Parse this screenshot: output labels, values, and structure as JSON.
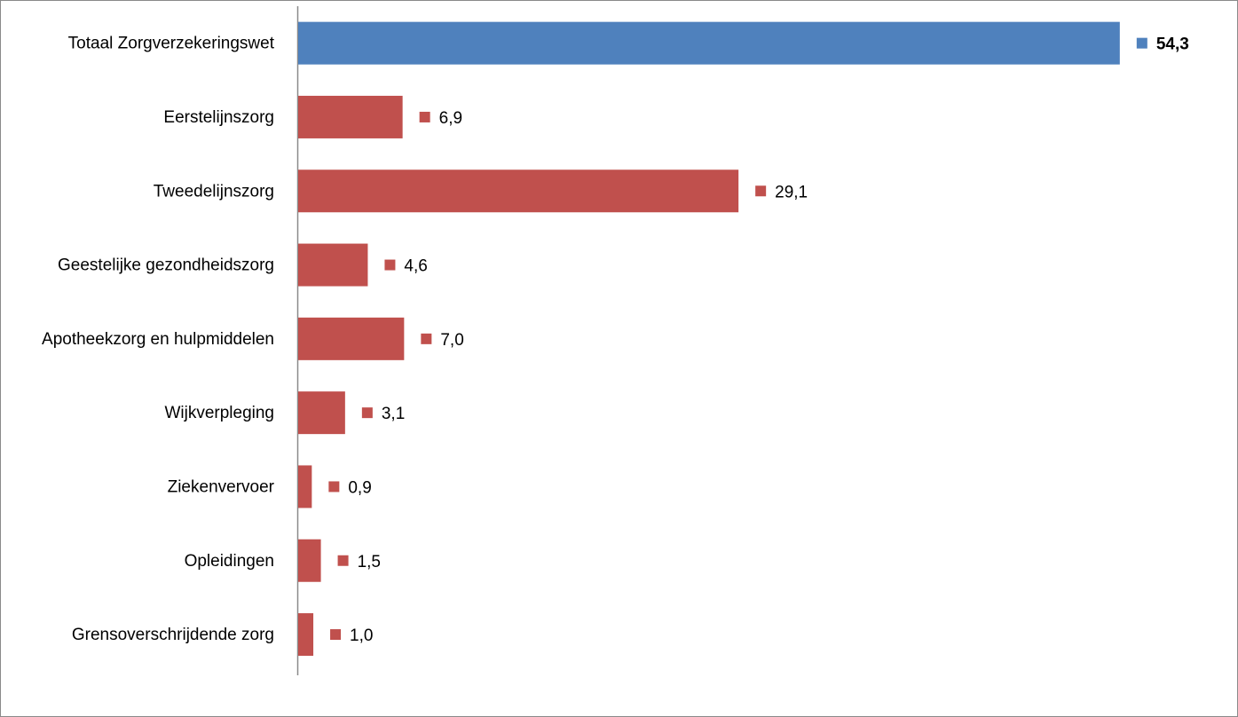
{
  "chart_data": {
    "type": "bar",
    "orientation": "horizontal",
    "title": "",
    "xlabel": "",
    "ylabel": "",
    "categories": [
      "Totaal Zorgverzekeringswet",
      "Eerstelijnszorg",
      "Tweedelijnszorg",
      "Geestelijke gezondheidszorg",
      "Apotheekzorg en hulpmiddelen",
      "Wijkverpleging",
      "Ziekenvervoer",
      "Opleidingen",
      "Grensoverschrijdende zorg"
    ],
    "values": [
      54.3,
      6.9,
      29.1,
      4.6,
      7.0,
      3.1,
      0.9,
      1.5,
      1.0
    ],
    "value_labels": [
      "54,3",
      "6,9",
      "29,1",
      "4,6",
      "7,0",
      "3,1",
      "0,9",
      "1,5",
      "1,0"
    ],
    "highlight_index": 0,
    "colors": {
      "highlight": "#4f81bd",
      "default": "#c0504d"
    },
    "xlim": [
      0,
      60
    ],
    "grid": false,
    "legend": "none"
  }
}
